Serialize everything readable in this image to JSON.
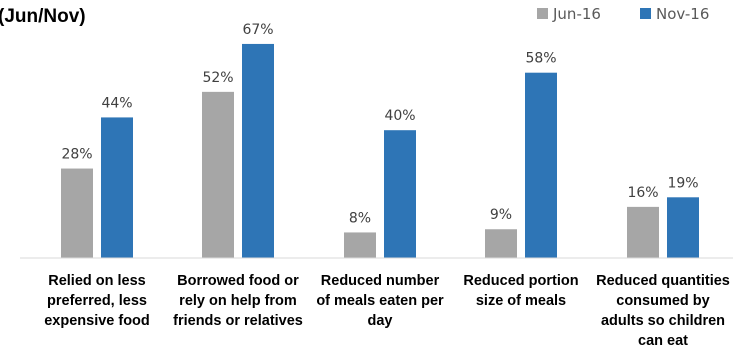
{
  "title_fragment": "(Jun/Nov)",
  "chart_data": {
    "type": "bar",
    "categories": [
      [
        "Relied on less",
        "preferred, less",
        "expensive food"
      ],
      [
        "Borrowed food or",
        "rely on help from",
        "friends or relatives"
      ],
      [
        "Reduced number",
        "of meals eaten per",
        "day"
      ],
      [
        "Reduced portion",
        "size of meals"
      ],
      [
        "Reduced quantities",
        "consumed by",
        "adults so children",
        "can eat"
      ]
    ],
    "series": [
      {
        "name": "Jun-16",
        "color": "#a6a6a6",
        "values": [
          28,
          52,
          8,
          9,
          16
        ],
        "labels": [
          "28%",
          "52%",
          "8%",
          "9%",
          "16%"
        ]
      },
      {
        "name": "Nov-16",
        "color": "#2e75b6",
        "values": [
          44,
          67,
          40,
          58,
          19
        ],
        "labels": [
          "44%",
          "67%",
          "40%",
          "58%",
          "19%"
        ]
      }
    ],
    "ylim": [
      0,
      100
    ],
    "grid": false,
    "legend_position": "top-right"
  }
}
